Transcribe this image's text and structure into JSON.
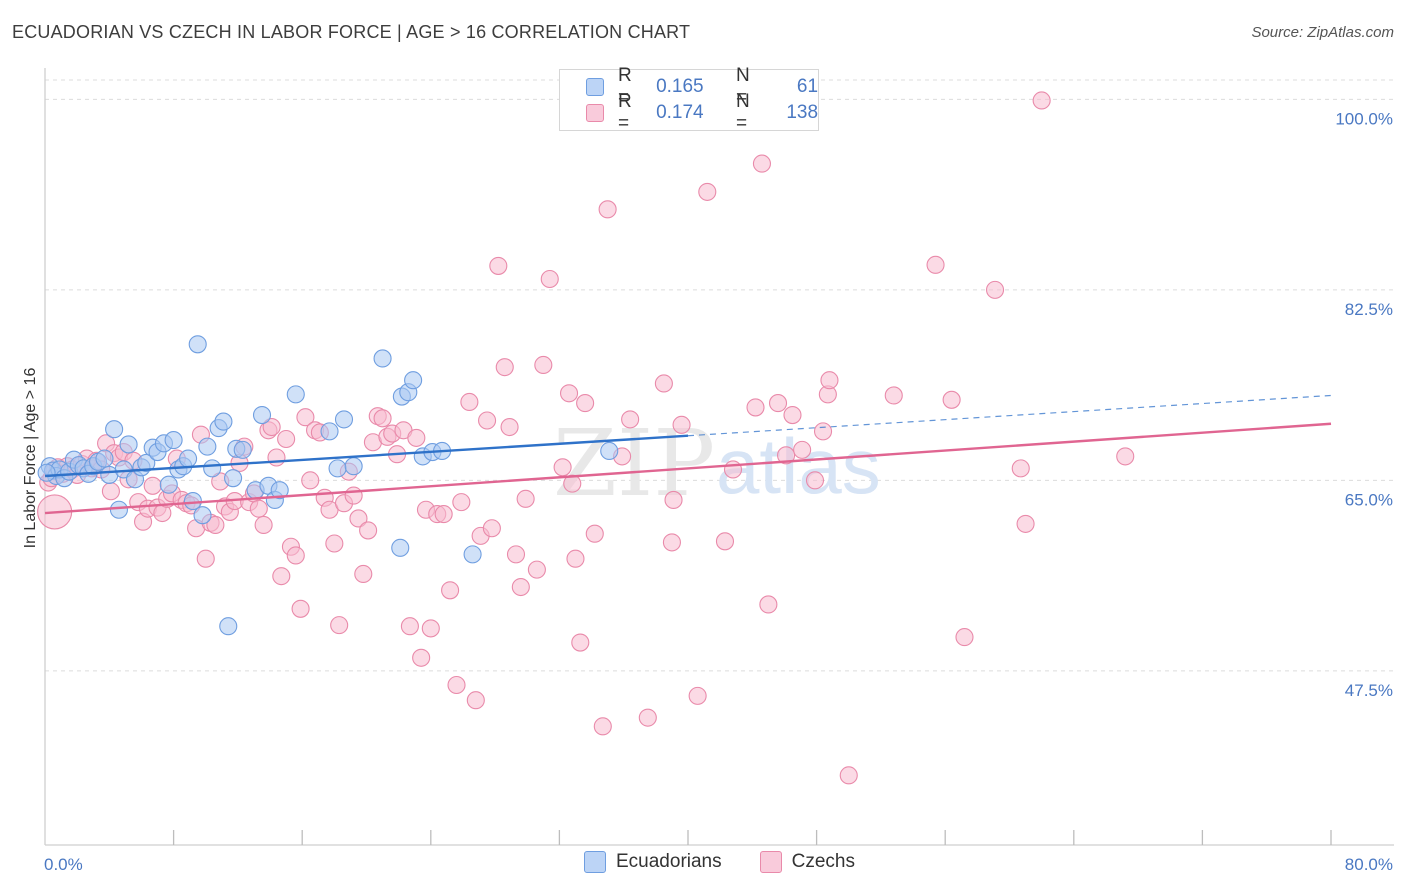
{
  "title": "ECUADORIAN VS CZECH IN LABOR FORCE | AGE > 16 CORRELATION CHART",
  "source": "Source: ZipAtlas.com",
  "watermark": {
    "zip": "ZIP",
    "atlas": "atlas"
  },
  "colors": {
    "blue_fill": "#a9c8f3",
    "blue_stroke": "#6f9ee0",
    "blue_line": "#2f72c9",
    "pink_fill": "#f7bccf",
    "pink_stroke": "#e98aaa",
    "pink_line": "#e06591",
    "tick_text": "#4a78c2",
    "grid": "#dcdcdc"
  },
  "legend": {
    "rows": [
      {
        "r_label": "R =",
        "r_value": "0.165",
        "n_label": "N =",
        "n_value": "61"
      },
      {
        "r_label": "R =",
        "r_value": "0.174",
        "n_label": "N =",
        "n_value": "138"
      }
    ]
  },
  "bottom_legend": [
    "Ecuadorians",
    "Czechs"
  ],
  "chart_data": {
    "type": "scatter",
    "ylabel": "In Labor Force | Age > 16",
    "xlabel": "",
    "xlim": [
      0,
      80
    ],
    "ylim": [
      31.5,
      102.7
    ],
    "x_tick_labels": [
      {
        "value": 0,
        "label": "0.0%"
      },
      {
        "value": 80,
        "label": "80.0%"
      }
    ],
    "x_minor_ticks": [
      8,
      16,
      24,
      32,
      40,
      48,
      56,
      64,
      72,
      80
    ],
    "y_ticks": [
      {
        "value": 100.0,
        "label": "100.0%"
      },
      {
        "value": 82.5,
        "label": "82.5%"
      },
      {
        "value": 65.0,
        "label": "65.0%"
      },
      {
        "value": 47.5,
        "label": "47.5%"
      }
    ],
    "series": [
      {
        "name": "Ecuadorians",
        "r": 0.165,
        "n": 61,
        "trend": {
          "x0": 0,
          "y0": 65.4,
          "x1": 40,
          "y1": 69.1,
          "dash_to_x": 80,
          "dash_to_y": 72.8
        },
        "points": [
          [
            0.3,
            66.3
          ],
          [
            0.5,
            65.9
          ],
          [
            0.7,
            65.4
          ],
          [
            0.9,
            66.0
          ],
          [
            1.2,
            65.2
          ],
          [
            1.5,
            65.8
          ],
          [
            1.8,
            66.9
          ],
          [
            2.1,
            66.4
          ],
          [
            2.4,
            66.1
          ],
          [
            2.7,
            65.6
          ],
          [
            3.0,
            66.3
          ],
          [
            3.3,
            66.7
          ],
          [
            3.7,
            67.0
          ],
          [
            4.0,
            65.5
          ],
          [
            4.3,
            69.7
          ],
          [
            4.6,
            62.3
          ],
          [
            4.9,
            66.0
          ],
          [
            5.2,
            68.3
          ],
          [
            5.6,
            65.1
          ],
          [
            6.0,
            66.2
          ],
          [
            6.3,
            66.6
          ],
          [
            6.7,
            68.0
          ],
          [
            7.0,
            67.6
          ],
          [
            7.4,
            68.4
          ],
          [
            7.7,
            64.6
          ],
          [
            8.0,
            68.7
          ],
          [
            8.3,
            66.0
          ],
          [
            8.6,
            66.3
          ],
          [
            8.9,
            67.0
          ],
          [
            9.2,
            63.1
          ],
          [
            9.5,
            77.5
          ],
          [
            9.8,
            61.8
          ],
          [
            10.1,
            68.1
          ],
          [
            10.4,
            66.1
          ],
          [
            10.8,
            69.8
          ],
          [
            11.1,
            70.4
          ],
          [
            11.4,
            51.6
          ],
          [
            11.7,
            65.2
          ],
          [
            11.9,
            67.9
          ],
          [
            12.3,
            67.8
          ],
          [
            13.1,
            64.1
          ],
          [
            13.5,
            71.0
          ],
          [
            13.9,
            64.5
          ],
          [
            14.3,
            63.2
          ],
          [
            14.6,
            64.1
          ],
          [
            15.6,
            72.9
          ],
          [
            17.7,
            69.5
          ],
          [
            18.2,
            66.1
          ],
          [
            18.6,
            70.6
          ],
          [
            19.2,
            66.3
          ],
          [
            21.0,
            76.2
          ],
          [
            22.2,
            72.7
          ],
          [
            22.6,
            73.1
          ],
          [
            22.9,
            74.2
          ],
          [
            22.1,
            58.8
          ],
          [
            23.5,
            67.2
          ],
          [
            24.1,
            67.6
          ],
          [
            24.7,
            67.7
          ],
          [
            26.6,
            58.2
          ],
          [
            35.1,
            67.7
          ],
          [
            0.1,
            65.7
          ]
        ]
      },
      {
        "name": "Czechs",
        "r": 0.174,
        "n": 138,
        "trend": {
          "x0": 0,
          "y0": 62.0,
          "x1": 80,
          "y1": 70.2
        },
        "points": [
          [
            0.2,
            64.8
          ],
          [
            0.4,
            65.2
          ],
          [
            0.6,
            65.9
          ],
          [
            0.8,
            66.2
          ],
          [
            1.1,
            65.6
          ],
          [
            1.4,
            66.3
          ],
          [
            1.7,
            66.0
          ],
          [
            2.0,
            65.5
          ],
          [
            2.3,
            66.5
          ],
          [
            2.6,
            67.0
          ],
          [
            2.9,
            66.1
          ],
          [
            3.2,
            66.8
          ],
          [
            3.5,
            66.0
          ],
          [
            3.8,
            68.4
          ],
          [
            4.1,
            64.0
          ],
          [
            4.3,
            67.5
          ],
          [
            4.6,
            67.1
          ],
          [
            4.9,
            67.6
          ],
          [
            5.2,
            65.1
          ],
          [
            5.5,
            66.8
          ],
          [
            5.8,
            63.0
          ],
          [
            6.1,
            61.2
          ],
          [
            6.4,
            62.4
          ],
          [
            6.7,
            64.5
          ],
          [
            7.0,
            62.5
          ],
          [
            7.3,
            62.0
          ],
          [
            7.6,
            63.3
          ],
          [
            7.9,
            63.8
          ],
          [
            8.2,
            67.0
          ],
          [
            8.5,
            63.2
          ],
          [
            8.8,
            62.9
          ],
          [
            9.1,
            62.7
          ],
          [
            9.4,
            60.6
          ],
          [
            9.7,
            69.2
          ],
          [
            10.0,
            57.8
          ],
          [
            10.3,
            61.1
          ],
          [
            10.6,
            60.9
          ],
          [
            10.9,
            64.9
          ],
          [
            11.2,
            62.6
          ],
          [
            11.5,
            62.1
          ],
          [
            11.8,
            63.1
          ],
          [
            12.1,
            66.6
          ],
          [
            12.4,
            68.1
          ],
          [
            12.7,
            63.0
          ],
          [
            13.0,
            63.8
          ],
          [
            13.3,
            62.4
          ],
          [
            13.6,
            60.9
          ],
          [
            13.9,
            69.6
          ],
          [
            14.1,
            69.9
          ],
          [
            14.4,
            67.1
          ],
          [
            14.7,
            56.2
          ],
          [
            15.0,
            68.8
          ],
          [
            15.3,
            58.9
          ],
          [
            15.6,
            58.1
          ],
          [
            15.9,
            53.2
          ],
          [
            16.2,
            70.8
          ],
          [
            16.5,
            65.0
          ],
          [
            16.8,
            69.6
          ],
          [
            17.1,
            69.4
          ],
          [
            17.4,
            63.4
          ],
          [
            17.7,
            62.3
          ],
          [
            18.0,
            59.2
          ],
          [
            18.3,
            51.7
          ],
          [
            18.6,
            62.9
          ],
          [
            18.9,
            65.8
          ],
          [
            19.2,
            63.6
          ],
          [
            19.5,
            61.5
          ],
          [
            19.8,
            56.4
          ],
          [
            20.1,
            60.4
          ],
          [
            20.4,
            68.5
          ],
          [
            20.7,
            70.9
          ],
          [
            21.0,
            70.7
          ],
          [
            21.3,
            69.0
          ],
          [
            21.6,
            69.3
          ],
          [
            21.9,
            67.4
          ],
          [
            22.3,
            69.6
          ],
          [
            22.7,
            51.6
          ],
          [
            23.1,
            68.9
          ],
          [
            23.4,
            48.7
          ],
          [
            23.7,
            62.3
          ],
          [
            24.0,
            51.4
          ],
          [
            24.4,
            61.9
          ],
          [
            24.8,
            61.9
          ],
          [
            25.2,
            54.9
          ],
          [
            25.6,
            46.2
          ],
          [
            25.9,
            63.0
          ],
          [
            26.4,
            72.2
          ],
          [
            26.8,
            44.8
          ],
          [
            27.1,
            59.9
          ],
          [
            27.5,
            70.5
          ],
          [
            27.8,
            60.6
          ],
          [
            28.2,
            84.7
          ],
          [
            28.6,
            75.4
          ],
          [
            28.9,
            69.9
          ],
          [
            29.3,
            58.2
          ],
          [
            29.6,
            55.2
          ],
          [
            29.9,
            63.3
          ],
          [
            30.6,
            56.8
          ],
          [
            31.0,
            75.6
          ],
          [
            31.4,
            83.5
          ],
          [
            32.2,
            66.2
          ],
          [
            32.6,
            73.0
          ],
          [
            32.8,
            64.7
          ],
          [
            33.0,
            57.8
          ],
          [
            33.3,
            50.1
          ],
          [
            33.6,
            72.1
          ],
          [
            34.2,
            60.1
          ],
          [
            34.7,
            42.4
          ],
          [
            35.0,
            89.9
          ],
          [
            35.9,
            67.2
          ],
          [
            36.4,
            70.6
          ],
          [
            37.5,
            43.2
          ],
          [
            38.5,
            73.9
          ],
          [
            39.0,
            59.3
          ],
          [
            39.1,
            63.2
          ],
          [
            39.6,
            70.1
          ],
          [
            40.6,
            45.2
          ],
          [
            41.2,
            91.5
          ],
          [
            42.3,
            59.4
          ],
          [
            42.8,
            66.0
          ],
          [
            44.2,
            71.7
          ],
          [
            44.6,
            94.1
          ],
          [
            45.0,
            53.6
          ],
          [
            45.6,
            72.1
          ],
          [
            46.1,
            67.3
          ],
          [
            46.5,
            71.0
          ],
          [
            47.1,
            67.8
          ],
          [
            47.9,
            65.0
          ],
          [
            48.4,
            69.5
          ],
          [
            48.7,
            72.9
          ],
          [
            48.8,
            74.2
          ],
          [
            50.0,
            37.9
          ],
          [
            52.8,
            72.8
          ],
          [
            55.4,
            84.8
          ],
          [
            56.4,
            72.4
          ],
          [
            57.2,
            50.6
          ],
          [
            59.1,
            82.5
          ],
          [
            60.7,
            66.1
          ],
          [
            61.0,
            61.0
          ],
          [
            62.0,
            99.9
          ],
          [
            67.2,
            67.2
          ],
          [
            0.6,
            62.1
          ]
        ]
      }
    ]
  }
}
